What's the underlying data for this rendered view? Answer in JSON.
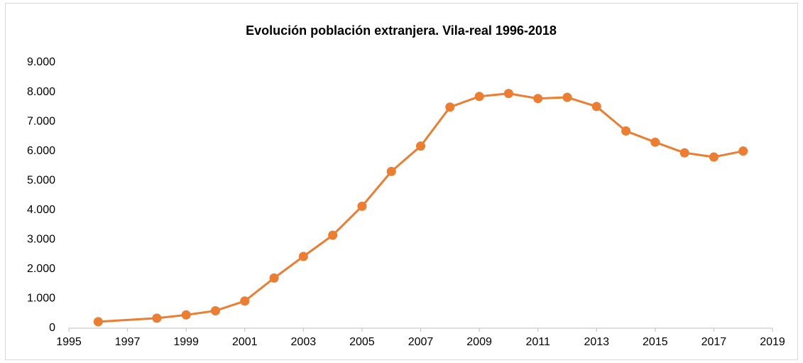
{
  "chart_data": {
    "type": "line",
    "title": "Evolución población extranjera. Vila-real 1996-2018",
    "x": [
      1996,
      1998,
      1999,
      2000,
      2001,
      2002,
      2003,
      2004,
      2005,
      2006,
      2007,
      2008,
      2009,
      2010,
      2011,
      2012,
      2013,
      2014,
      2015,
      2016,
      2017,
      2018
    ],
    "values": [
      220,
      340,
      450,
      590,
      920,
      1700,
      2430,
      3150,
      4130,
      5310,
      6170,
      7490,
      7850,
      7950,
      7780,
      7820,
      7510,
      6680,
      6300,
      5940,
      5800,
      6000
    ],
    "color": "#ed7d31",
    "xlim": [
      1995,
      2019
    ],
    "xticks": [
      1995,
      1997,
      1999,
      2001,
      2003,
      2005,
      2007,
      2009,
      2011,
      2013,
      2015,
      2017,
      2019
    ],
    "ylim": [
      0,
      9000
    ],
    "yticks": [
      0,
      {
        "value": 1000,
        "label": "1.000"
      },
      {
        "value": 2000,
        "label": "2.000"
      },
      {
        "value": 3000,
        "label": "3.000"
      },
      {
        "value": 4000,
        "label": "4.000"
      },
      {
        "value": 5000,
        "label": "5.000"
      },
      {
        "value": 6000,
        "label": "6.000"
      },
      {
        "value": 7000,
        "label": "7.000"
      },
      {
        "value": 8000,
        "label": "8.000"
      },
      {
        "value": 9000,
        "label": "9.000"
      }
    ],
    "grid": false
  }
}
